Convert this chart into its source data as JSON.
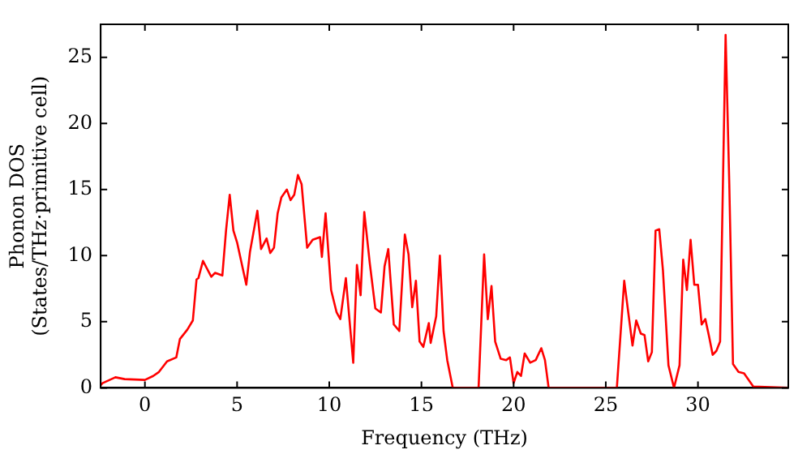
{
  "chart_data": {
    "type": "line",
    "xlabel": "Frequency (THz)",
    "ylabel": "Phonon DOS\n(States/THz·primitive cell)",
    "xlim": [
      -2.4,
      34.9
    ],
    "ylim": [
      0,
      27.5
    ],
    "xticks": [
      0,
      5,
      10,
      15,
      20,
      25,
      30
    ],
    "yticks": [
      0,
      5,
      10,
      15,
      20,
      25
    ],
    "grid": false,
    "legend": false,
    "marker": "none",
    "line_style": "solid",
    "x": [
      -2.4,
      -2.3,
      -1.6,
      -1.1,
      0,
      0.45,
      0.76,
      1.2,
      1.7,
      1.9,
      2.3,
      2.6,
      2.8,
      2.9,
      3.15,
      3.6,
      3.8,
      4.2,
      4.4,
      4.6,
      4.8,
      5.0,
      5.5,
      5.7,
      6.1,
      6.3,
      6.6,
      6.8,
      7.0,
      7.2,
      7.4,
      7.7,
      7.9,
      8.1,
      8.3,
      8.5,
      8.8,
      9.1,
      9.5,
      9.6,
      9.8,
      10.1,
      10.4,
      10.6,
      10.9,
      11.3,
      11.5,
      11.7,
      11.9,
      12.2,
      12.5,
      12.8,
      13.0,
      13.2,
      13.5,
      13.8,
      14.1,
      14.3,
      14.5,
      14.7,
      14.9,
      15.1,
      15.4,
      15.5,
      15.8,
      16.0,
      16.2,
      16.4,
      16.7,
      18.1,
      18.4,
      18.6,
      18.8,
      19.0,
      19.3,
      19.6,
      19.8,
      20.0,
      20.2,
      20.4,
      20.6,
      20.9,
      21.2,
      21.5,
      21.7,
      21.9,
      25.6,
      26.0,
      26.45,
      26.65,
      26.9,
      27.1,
      27.3,
      27.5,
      27.7,
      27.9,
      28.1,
      28.4,
      28.7,
      29.0,
      29.2,
      29.4,
      29.6,
      29.8,
      30.0,
      30.2,
      30.4,
      30.6,
      30.8,
      31.0,
      31.2,
      31.5,
      31.7,
      31.9,
      32.2,
      32.5,
      32.7,
      33.0,
      34.9
    ],
    "series": [
      {
        "color": "#ff0000",
        "values": [
          0.2,
          0.35,
          0.8,
          0.66,
          0.6,
          0.9,
          1.2,
          2.0,
          2.3,
          3.7,
          4.4,
          5.1,
          8.2,
          8.3,
          9.6,
          8.4,
          8.7,
          8.5,
          11.9,
          14.6,
          11.9,
          11.0,
          7.8,
          10.3,
          13.4,
          10.5,
          11.3,
          10.2,
          10.6,
          13.2,
          14.4,
          15.0,
          14.2,
          14.6,
          16.1,
          15.4,
          10.6,
          11.2,
          11.4,
          9.9,
          13.2,
          7.4,
          5.7,
          5.2,
          8.3,
          1.9,
          9.3,
          7.0,
          13.3,
          9.4,
          6.0,
          5.7,
          9.2,
          10.5,
          4.8,
          4.3,
          11.6,
          10.1,
          6.1,
          8.1,
          3.5,
          3.1,
          4.9,
          3.4,
          5.4,
          10.0,
          4.3,
          2.1,
          0,
          0,
          10.1,
          5.2,
          7.7,
          3.5,
          2.2,
          2.1,
          2.3,
          0.35,
          1.2,
          0.9,
          2.6,
          1.9,
          2.1,
          3.0,
          2.1,
          0,
          0,
          8.1,
          3.2,
          5.1,
          4.1,
          4.0,
          2.0,
          2.7,
          11.9,
          12.0,
          8.9,
          1.7,
          0,
          1.7,
          9.7,
          7.4,
          11.2,
          7.8,
          7.8,
          4.8,
          5.2,
          3.9,
          2.5,
          2.8,
          3.5,
          26.7,
          15.4,
          1.8,
          1.2,
          1.1,
          0.7,
          0.1,
          0
        ]
      }
    ]
  }
}
